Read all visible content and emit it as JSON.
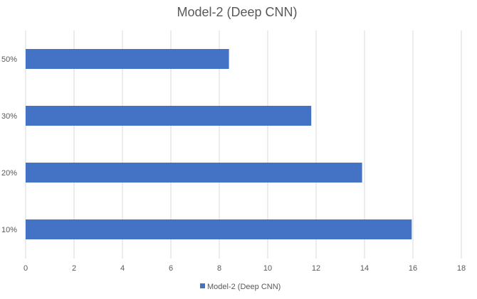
{
  "chart_data": {
    "type": "bar",
    "orientation": "horizontal",
    "title": "Model-2 (Deep CNN)",
    "categories": [
      "10%",
      "20%",
      "30%",
      "50%"
    ],
    "series": [
      {
        "name": "Model-2 (Deep CNN)",
        "values": [
          15.95,
          13.9,
          11.8,
          8.4
        ]
      }
    ],
    "xlim": [
      0,
      18
    ],
    "x_ticks": [
      "0",
      "2",
      "4",
      "6",
      "8",
      "10",
      "12",
      "14",
      "16",
      "18"
    ],
    "grid": true,
    "legend": "bottom",
    "colors": {
      "bar": "#4472C4",
      "grid": "#D9D9D9",
      "text": "#595959"
    }
  }
}
